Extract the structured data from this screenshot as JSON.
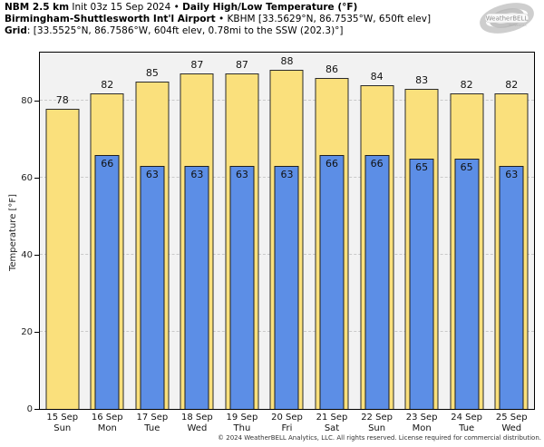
{
  "header": {
    "line1_model": "NBM 2.5 km",
    "line1_rest": " Init 03z 15 Sep 2024 • ",
    "line1_product": "Daily High/Low Temperature (°F)",
    "line2_station": "Birmingham-Shuttlesworth Int'l Airport",
    "line2_rest": " • KBHM [33.5629°N, 86.7535°W, 650ft elev]",
    "line3_label": "Grid",
    "line3_rest": ": [33.5525°N, 86.7586°W, 604ft elev, 0.78mi to the SSW (202.3)°]"
  },
  "logo": {
    "icon": "weatherbell-swirl-logo",
    "text": "WeatherBELL",
    "subtext": "Analytics LLC"
  },
  "footer": {
    "copyright": "© 2024 WeatherBELL Analytics, LLC. All rights reserved. License required for commercial distribution."
  },
  "chart_data": {
    "type": "bar",
    "title": "NBM 2.5 km Daily High/Low Temperature (°F) — Birmingham-Shuttlesworth Int'l Airport (KBHM)",
    "ylabel": "Temperature [°F]",
    "ylim": [
      0,
      92.5
    ],
    "yticks": [
      0,
      20,
      40,
      60,
      80
    ],
    "grid": true,
    "legend": "none",
    "categories": [
      {
        "date": "15 Sep",
        "day": "Sun"
      },
      {
        "date": "16 Sep",
        "day": "Mon"
      },
      {
        "date": "17 Sep",
        "day": "Tue"
      },
      {
        "date": "18 Sep",
        "day": "Wed"
      },
      {
        "date": "19 Sep",
        "day": "Thu"
      },
      {
        "date": "20 Sep",
        "day": "Fri"
      },
      {
        "date": "21 Sep",
        "day": "Sat"
      },
      {
        "date": "22 Sep",
        "day": "Sun"
      },
      {
        "date": "23 Sep",
        "day": "Mon"
      },
      {
        "date": "24 Sep",
        "day": "Tue"
      },
      {
        "date": "25 Sep",
        "day": "Wed"
      }
    ],
    "series": [
      {
        "name": "Daily High",
        "color": "#FAE07C",
        "border": "#2b2b2b",
        "values": [
          78,
          82,
          85,
          87,
          87,
          88,
          86,
          84,
          83,
          82,
          82
        ]
      },
      {
        "name": "Daily Low",
        "color": "#5C8EE6",
        "border": "#1f1f1f",
        "values": [
          null,
          66,
          63,
          63,
          63,
          63,
          66,
          66,
          65,
          65,
          63
        ]
      }
    ],
    "colors": {
      "plot_background": "#f2f2f2",
      "gridline": "#c9c9c9",
      "axis": "#000000"
    }
  }
}
